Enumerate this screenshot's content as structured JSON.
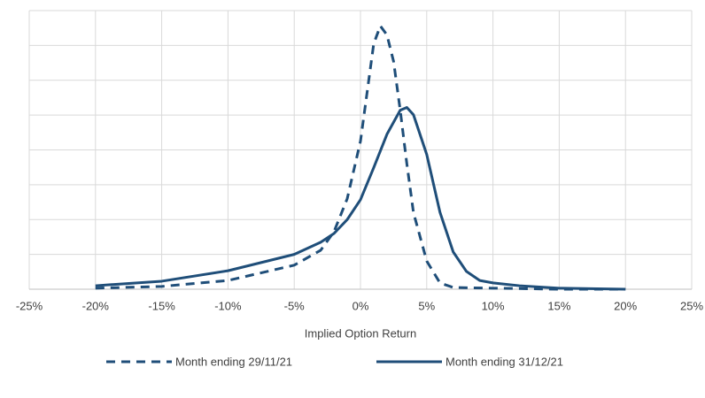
{
  "chart_data": {
    "type": "line",
    "x_label": "Implied Option Return",
    "xlim": [
      -25,
      25
    ],
    "xticks": [
      {
        "value": -25,
        "label": "-25%"
      },
      {
        "value": -20,
        "label": "-20%"
      },
      {
        "value": -15,
        "label": "-15%"
      },
      {
        "value": -10,
        "label": "-10%"
      },
      {
        "value": -5,
        "label": "-5%"
      },
      {
        "value": 0,
        "label": "0%"
      },
      {
        "value": 5,
        "label": "5%"
      },
      {
        "value": 10,
        "label": "10%"
      },
      {
        "value": 15,
        "label": "15%"
      },
      {
        "value": 20,
        "label": "20%"
      },
      {
        "value": 25,
        "label": "25%"
      }
    ],
    "ylim": [
      0,
      8
    ],
    "yticks": [
      0,
      1,
      2,
      3,
      4,
      5,
      6,
      7,
      8
    ],
    "grid": true,
    "legend": "bottom",
    "series": [
      {
        "name": "Month ending 29/11/21",
        "color": "#1f4e79",
        "dashed": true,
        "x": [
          -20,
          -15,
          -10,
          -5,
          -3,
          -2,
          -1,
          0,
          0.5,
          1,
          1.5,
          2,
          2.5,
          3,
          3.5,
          4,
          5,
          6,
          7,
          10,
          15,
          20
        ],
        "values": [
          0.03,
          0.08,
          0.25,
          0.69,
          1.12,
          1.65,
          2.6,
          4.25,
          5.65,
          7.05,
          7.56,
          7.3,
          6.54,
          5.14,
          3.6,
          2.2,
          0.81,
          0.18,
          0.05,
          0.03,
          0,
          0
        ]
      },
      {
        "name": "Month ending 31/12/21",
        "color": "#1f4e79",
        "dashed": false,
        "x": [
          -20,
          -15,
          -10,
          -5,
          -3,
          -2,
          -1,
          0,
          1,
          2,
          3,
          3.5,
          4,
          5,
          6,
          7,
          8,
          9,
          10,
          12,
          15,
          20
        ],
        "values": [
          0.1,
          0.23,
          0.53,
          1,
          1.35,
          1.6,
          2,
          2.57,
          3.49,
          4.45,
          5.14,
          5.22,
          5.01,
          3.87,
          2.21,
          1.07,
          0.51,
          0.25,
          0.18,
          0.1,
          0.03,
          0
        ]
      }
    ]
  }
}
